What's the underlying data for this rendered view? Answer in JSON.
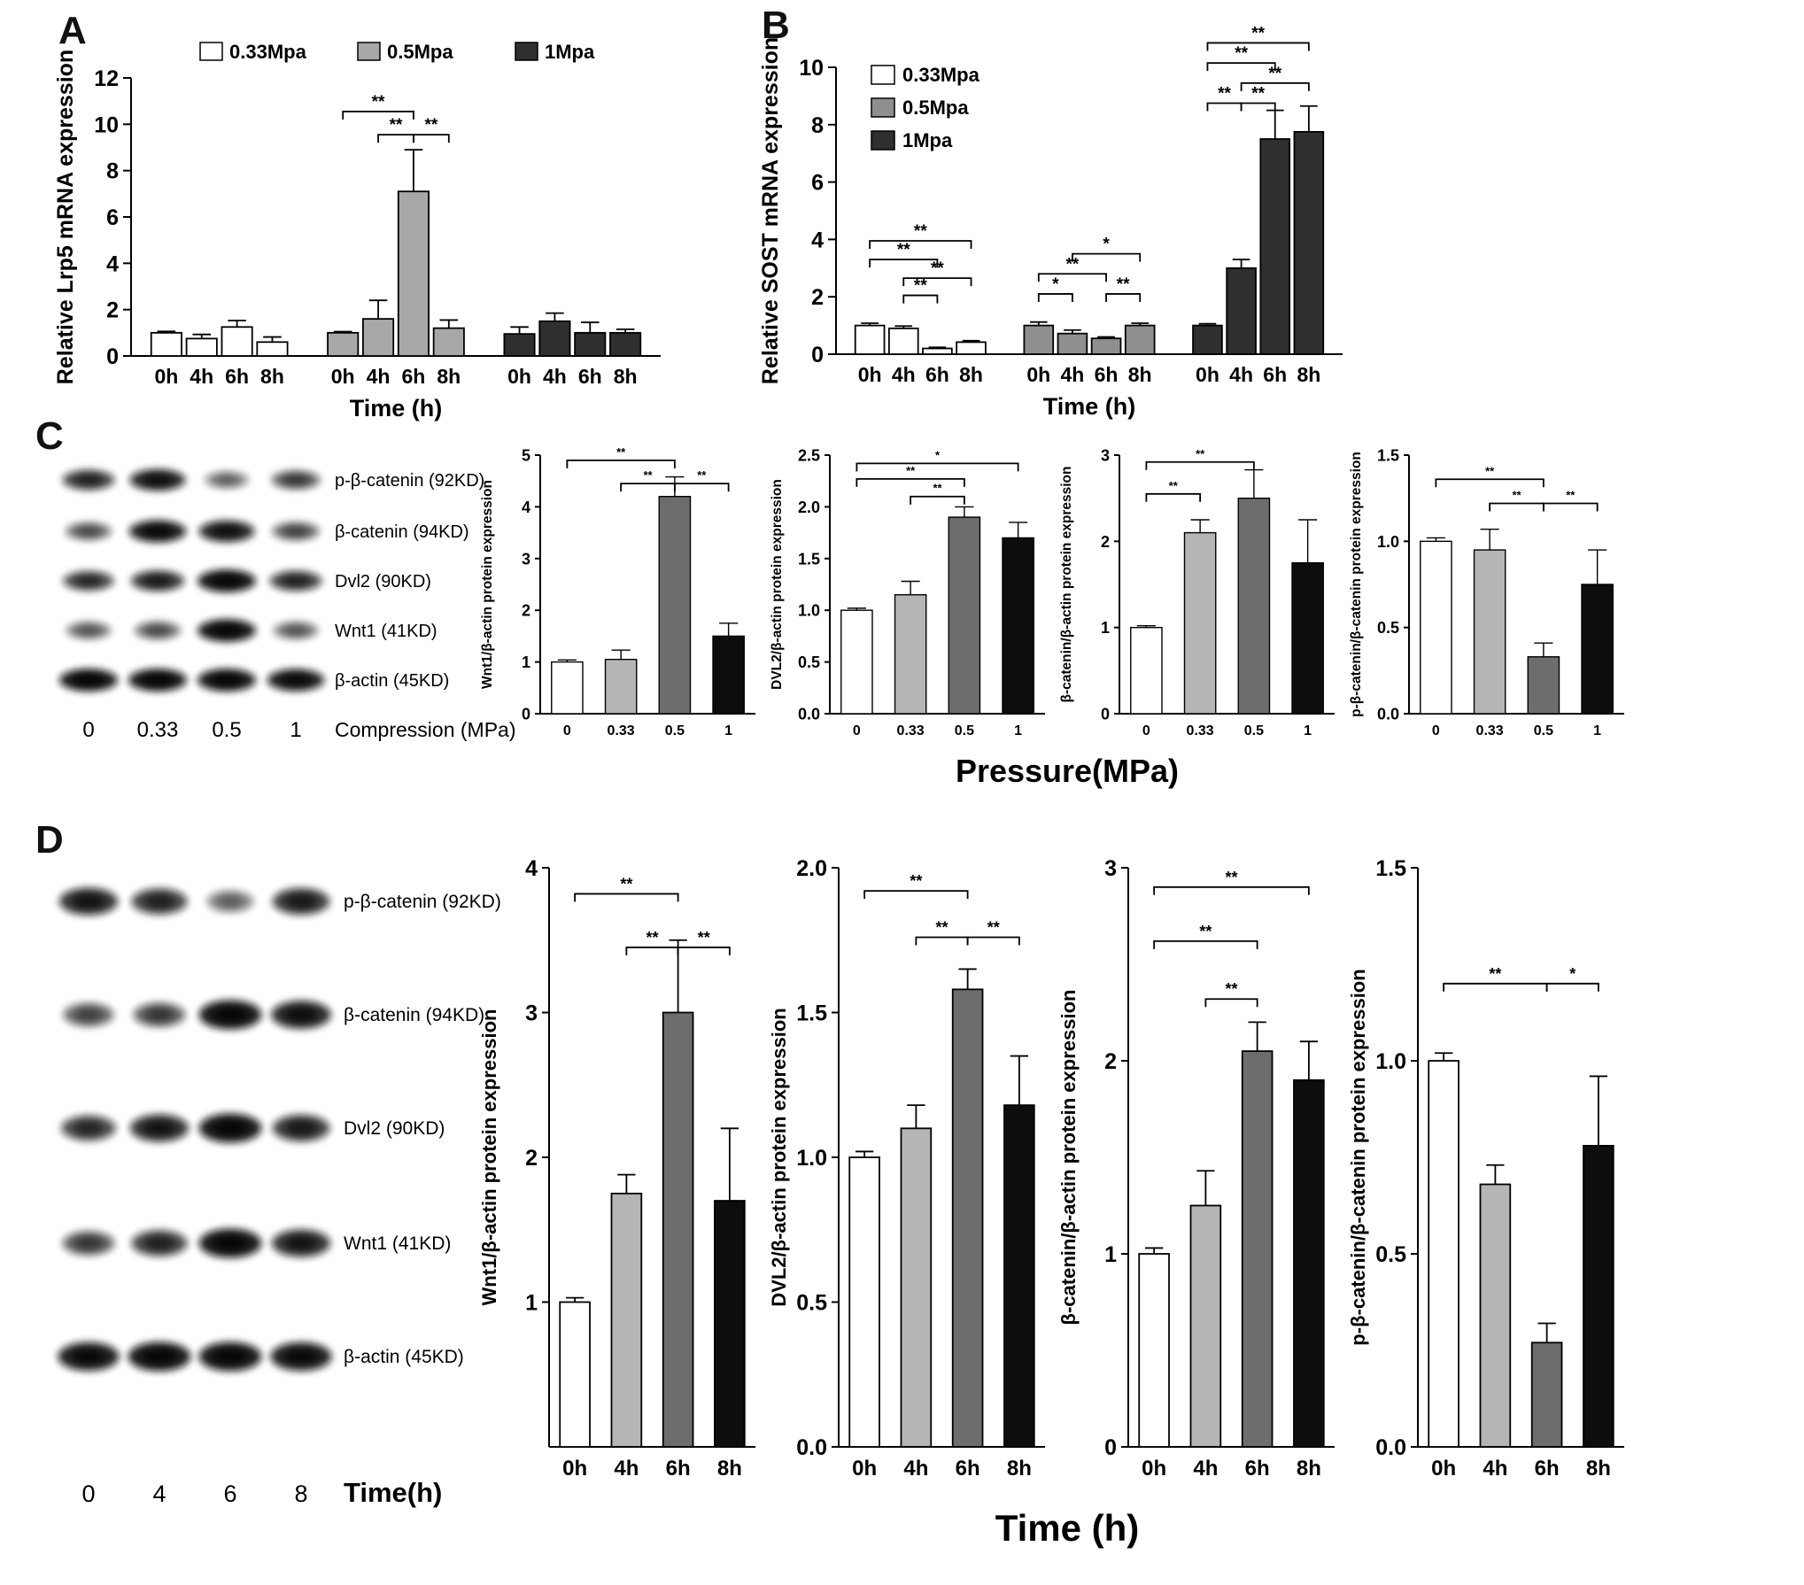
{
  "panels": {
    "A": {
      "letter": "A"
    },
    "B": {
      "letter": "B"
    },
    "C": {
      "letter": "C",
      "shared_xlabel": "Pressure(MPa)"
    },
    "D": {
      "letter": "D",
      "shared_xlabel": "Time (h)"
    }
  },
  "blots": {
    "C": {
      "rows": [
        {
          "label": "p-β-catenin (92KD)",
          "intensities": [
            0.7,
            0.85,
            0.35,
            0.55
          ]
        },
        {
          "label": "β-catenin (94KD)",
          "intensities": [
            0.45,
            0.9,
            0.85,
            0.5
          ]
        },
        {
          "label": "Dvl2 (90KD)",
          "intensities": [
            0.65,
            0.75,
            0.95,
            0.7
          ]
        },
        {
          "label": "Wnt1 (41KD)",
          "intensities": [
            0.4,
            0.45,
            0.95,
            0.4
          ]
        },
        {
          "label": "β-actin (45KD)",
          "intensities": [
            0.95,
            0.95,
            0.95,
            0.9
          ]
        }
      ],
      "lanes": [
        "0",
        "0.33",
        "0.5",
        "1"
      ],
      "lane_axis_label": "Compression (MPa)"
    },
    "D": {
      "rows": [
        {
          "label": "p-β-catenin (92KD)",
          "intensities": [
            0.8,
            0.7,
            0.35,
            0.75
          ]
        },
        {
          "label": "β-catenin (94KD)",
          "intensities": [
            0.5,
            0.55,
            0.95,
            0.85
          ]
        },
        {
          "label": "Dvl2 (90KD)",
          "intensities": [
            0.65,
            0.8,
            0.95,
            0.75
          ]
        },
        {
          "label": "Wnt1 (41KD)",
          "intensities": [
            0.55,
            0.7,
            0.95,
            0.8
          ]
        },
        {
          "label": "β-actin (45KD)",
          "intensities": [
            0.9,
            0.95,
            0.95,
            0.9
          ]
        }
      ],
      "lanes": [
        "0",
        "4",
        "6",
        "8"
      ],
      "lane_axis_label": "Time(h)"
    }
  },
  "chart_data": [
    {
      "id": "chartA",
      "type": "bar",
      "ylabel": "Relative Lrp5 mRNA expression",
      "xlabel": "Time (h)",
      "ylim": [
        0,
        12
      ],
      "yticks": [
        "0",
        "2",
        "4",
        "6",
        "8",
        "10",
        "12"
      ],
      "categories": [
        "0h",
        "4h",
        "6h",
        "8h"
      ],
      "groups": [
        {
          "name": "0.33Mpa",
          "color": "#ffffff",
          "values": [
            1.0,
            0.75,
            1.25,
            0.6
          ],
          "errors": [
            0.06,
            0.18,
            0.28,
            0.22
          ]
        },
        {
          "name": "0.5Mpa",
          "color": "#a8a8a8",
          "values": [
            1.0,
            1.6,
            7.1,
            1.2
          ],
          "errors": [
            0.05,
            0.8,
            1.8,
            0.35
          ]
        },
        {
          "name": "1Mpa",
          "color": "#2f2f2f",
          "values": [
            0.95,
            1.5,
            1.0,
            1.0
          ],
          "errors": [
            0.3,
            0.35,
            0.45,
            0.15
          ]
        }
      ],
      "legend": {
        "position": "row"
      },
      "brackets": [
        {
          "a": [
            1,
            0
          ],
          "b": [
            1,
            2
          ],
          "y": 10.55,
          "label": "**"
        },
        {
          "a": [
            1,
            1
          ],
          "b": [
            1,
            2
          ],
          "y": 9.55,
          "label": "**"
        },
        {
          "a": [
            1,
            2
          ],
          "b": [
            1,
            3
          ],
          "y": 9.55,
          "label": "**"
        }
      ]
    },
    {
      "id": "chartB",
      "type": "bar",
      "ylabel": "Relative SOST mRNA expression",
      "xlabel": "Time (h)",
      "ylim": [
        0,
        10
      ],
      "yticks": [
        "0",
        "2",
        "4",
        "6",
        "8",
        "10"
      ],
      "categories": [
        "0h",
        "4h",
        "6h",
        "8h"
      ],
      "groups": [
        {
          "name": "0.33Mpa",
          "color": "#ffffff",
          "values": [
            1.0,
            0.9,
            0.2,
            0.42
          ],
          "errors": [
            0.08,
            0.08,
            0.04,
            0.05
          ]
        },
        {
          "name": "0.5Mpa",
          "color": "#8f8f8f",
          "values": [
            1.0,
            0.72,
            0.55,
            1.0
          ],
          "errors": [
            0.12,
            0.12,
            0.05,
            0.08
          ]
        },
        {
          "name": "1Mpa",
          "color": "#2f2f2f",
          "values": [
            1.0,
            3.0,
            7.5,
            7.75
          ],
          "errors": [
            0.06,
            0.3,
            1.0,
            0.9
          ]
        }
      ],
      "legend": {
        "position": "column"
      },
      "brackets": [
        {
          "a": [
            0,
            0
          ],
          "b": [
            0,
            3
          ],
          "y": 3.95,
          "label": "**"
        },
        {
          "a": [
            0,
            0
          ],
          "b": [
            0,
            2
          ],
          "y": 3.3,
          "label": "**"
        },
        {
          "a": [
            0,
            1
          ],
          "b": [
            0,
            3
          ],
          "y": 2.65,
          "label": "**"
        },
        {
          "a": [
            0,
            1
          ],
          "b": [
            0,
            2
          ],
          "y": 2.05,
          "label": "**"
        },
        {
          "a": [
            1,
            1
          ],
          "b": [
            1,
            3
          ],
          "y": 3.5,
          "label": "*"
        },
        {
          "a": [
            1,
            0
          ],
          "b": [
            1,
            2
          ],
          "y": 2.8,
          "label": "**"
        },
        {
          "a": [
            1,
            0
          ],
          "b": [
            1,
            1
          ],
          "y": 2.1,
          "label": "*"
        },
        {
          "a": [
            1,
            2
          ],
          "b": [
            1,
            3
          ],
          "y": 2.1,
          "label": "**"
        },
        {
          "a": [
            2,
            0
          ],
          "b": [
            2,
            3
          ],
          "y": 10.85,
          "label": "**"
        },
        {
          "a": [
            2,
            0
          ],
          "b": [
            2,
            2
          ],
          "y": 10.15,
          "label": "**"
        },
        {
          "a": [
            2,
            1
          ],
          "b": [
            2,
            3
          ],
          "y": 9.45,
          "label": "**"
        },
        {
          "a": [
            2,
            0
          ],
          "b": [
            2,
            1
          ],
          "y": 8.75,
          "label": "**"
        },
        {
          "a": [
            2,
            1
          ],
          "b": [
            2,
            2
          ],
          "y": 8.75,
          "label": "**"
        }
      ]
    },
    {
      "id": "c1",
      "type": "bar",
      "ylabel": "Wnt1/β-actin protein expression",
      "ylim": [
        0,
        5
      ],
      "yticks": [
        "0",
        "1",
        "2",
        "3",
        "4",
        "5"
      ],
      "categories": [
        "0",
        "0.33",
        "0.5",
        "1"
      ],
      "colors": [
        "#ffffff",
        "#b5b5b5",
        "#6d6d6d",
        "#0d0d0d"
      ],
      "values": [
        1.0,
        1.05,
        4.2,
        1.5
      ],
      "errors": [
        0.04,
        0.18,
        0.38,
        0.25
      ],
      "brackets": [
        {
          "a": 0,
          "b": 2,
          "y": 4.9,
          "label": "**"
        },
        {
          "a": 1,
          "b": 2,
          "y": 4.45,
          "label": "**"
        },
        {
          "a": 2,
          "b": 3,
          "y": 4.45,
          "label": "**"
        }
      ]
    },
    {
      "id": "c2",
      "type": "bar",
      "ylabel": "DVL2/β-actin protein expression",
      "ylim": [
        0,
        2.5
      ],
      "yticks": [
        "0.0",
        "0.5",
        "1.0",
        "1.5",
        "2.0",
        "2.5"
      ],
      "categories": [
        "0",
        "0.33",
        "0.5",
        "1"
      ],
      "colors": [
        "#ffffff",
        "#b5b5b5",
        "#6d6d6d",
        "#0d0d0d"
      ],
      "values": [
        1.0,
        1.15,
        1.9,
        1.7
      ],
      "errors": [
        0.02,
        0.13,
        0.1,
        0.15
      ],
      "brackets": [
        {
          "a": 0,
          "b": 3,
          "y": 2.42,
          "label": "*"
        },
        {
          "a": 0,
          "b": 2,
          "y": 2.27,
          "label": "**"
        },
        {
          "a": 1,
          "b": 2,
          "y": 2.1,
          "label": "**"
        }
      ]
    },
    {
      "id": "c3",
      "type": "bar",
      "ylabel": "β-catenin/β-actin protein expression",
      "ylim": [
        0,
        3
      ],
      "yticks": [
        "0",
        "1",
        "2",
        "3"
      ],
      "categories": [
        "0",
        "0.33",
        "0.5",
        "1"
      ],
      "colors": [
        "#ffffff",
        "#b5b5b5",
        "#6d6d6d",
        "#0d0d0d"
      ],
      "values": [
        1.0,
        2.1,
        2.5,
        1.75
      ],
      "errors": [
        0.02,
        0.15,
        0.33,
        0.5
      ],
      "brackets": [
        {
          "a": 0,
          "b": 2,
          "y": 2.92,
          "label": "**"
        },
        {
          "a": 0,
          "b": 1,
          "y": 2.55,
          "label": "**"
        }
      ]
    },
    {
      "id": "c4",
      "type": "bar",
      "ylabel": "p-β-catenin/β-catenin protein expression",
      "ylim": [
        0,
        1.5
      ],
      "yticks": [
        "0.0",
        "0.5",
        "1.0",
        "1.5"
      ],
      "categories": [
        "0",
        "0.33",
        "0.5",
        "1"
      ],
      "colors": [
        "#ffffff",
        "#b5b5b5",
        "#6d6d6d",
        "#0d0d0d"
      ],
      "values": [
        1.0,
        0.95,
        0.33,
        0.75
      ],
      "errors": [
        0.02,
        0.12,
        0.08,
        0.2
      ],
      "brackets": [
        {
          "a": 0,
          "b": 2,
          "y": 1.36,
          "label": "**"
        },
        {
          "a": 1,
          "b": 2,
          "y": 1.22,
          "label": "**"
        },
        {
          "a": 2,
          "b": 3,
          "y": 1.22,
          "label": "**"
        }
      ]
    },
    {
      "id": "d1",
      "type": "bar",
      "ylabel": "Wnt1/β-actin protein expression",
      "ylim": [
        0,
        4
      ],
      "yticks": [
        "1",
        "2",
        "3",
        "4"
      ],
      "categories": [
        "0h",
        "4h",
        "6h",
        "8h"
      ],
      "colors": [
        "#ffffff",
        "#b5b5b5",
        "#6d6d6d",
        "#0d0d0d"
      ],
      "values": [
        1.0,
        1.75,
        3.0,
        1.7
      ],
      "errors": [
        0.03,
        0.13,
        0.5,
        0.5
      ],
      "brackets": [
        {
          "a": 0,
          "b": 2,
          "y": 3.82,
          "label": "**"
        },
        {
          "a": 1,
          "b": 2,
          "y": 3.45,
          "label": "**"
        },
        {
          "a": 2,
          "b": 3,
          "y": 3.45,
          "label": "**"
        }
      ]
    },
    {
      "id": "d2",
      "type": "bar",
      "ylabel": "DVL2/β-actin protein expression",
      "ylim": [
        0,
        2.0
      ],
      "yticks": [
        "0.0",
        "0.5",
        "1.0",
        "1.5",
        "2.0"
      ],
      "categories": [
        "0h",
        "4h",
        "6h",
        "8h"
      ],
      "colors": [
        "#ffffff",
        "#b5b5b5",
        "#6d6d6d",
        "#0d0d0d"
      ],
      "values": [
        1.0,
        1.1,
        1.58,
        1.18
      ],
      "errors": [
        0.02,
        0.08,
        0.07,
        0.17
      ],
      "brackets": [
        {
          "a": 0,
          "b": 2,
          "y": 1.92,
          "label": "**"
        },
        {
          "a": 1,
          "b": 2,
          "y": 1.76,
          "label": "**"
        },
        {
          "a": 2,
          "b": 3,
          "y": 1.76,
          "label": "**"
        }
      ]
    },
    {
      "id": "d3",
      "type": "bar",
      "ylabel": "β-catenin/β-actin protein expression",
      "ylim": [
        0,
        3
      ],
      "yticks": [
        "0",
        "1",
        "2",
        "3"
      ],
      "categories": [
        "0h",
        "4h",
        "6h",
        "8h"
      ],
      "colors": [
        "#ffffff",
        "#b5b5b5",
        "#6d6d6d",
        "#0d0d0d"
      ],
      "values": [
        1.0,
        1.25,
        2.05,
        1.9
      ],
      "errors": [
        0.03,
        0.18,
        0.15,
        0.2
      ],
      "brackets": [
        {
          "a": 0,
          "b": 3,
          "y": 2.9,
          "label": "**"
        },
        {
          "a": 0,
          "b": 2,
          "y": 2.62,
          "label": "**"
        },
        {
          "a": 1,
          "b": 2,
          "y": 2.32,
          "label": "**"
        }
      ]
    },
    {
      "id": "d4",
      "type": "bar",
      "ylabel": "p-β-catenin/β-catenin protein expression",
      "ylim": [
        0,
        1.5
      ],
      "yticks": [
        "0.0",
        "0.5",
        "1.0",
        "1.5"
      ],
      "categories": [
        "0h",
        "4h",
        "6h",
        "8h"
      ],
      "colors": [
        "#ffffff",
        "#b5b5b5",
        "#6d6d6d",
        "#0d0d0d"
      ],
      "values": [
        1.0,
        0.68,
        0.27,
        0.78
      ],
      "errors": [
        0.02,
        0.05,
        0.05,
        0.18
      ],
      "brackets": [
        {
          "a": 0,
          "b": 2,
          "y": 1.2,
          "label": "**"
        },
        {
          "a": 2,
          "b": 3,
          "y": 1.2,
          "label": "*"
        }
      ]
    }
  ]
}
